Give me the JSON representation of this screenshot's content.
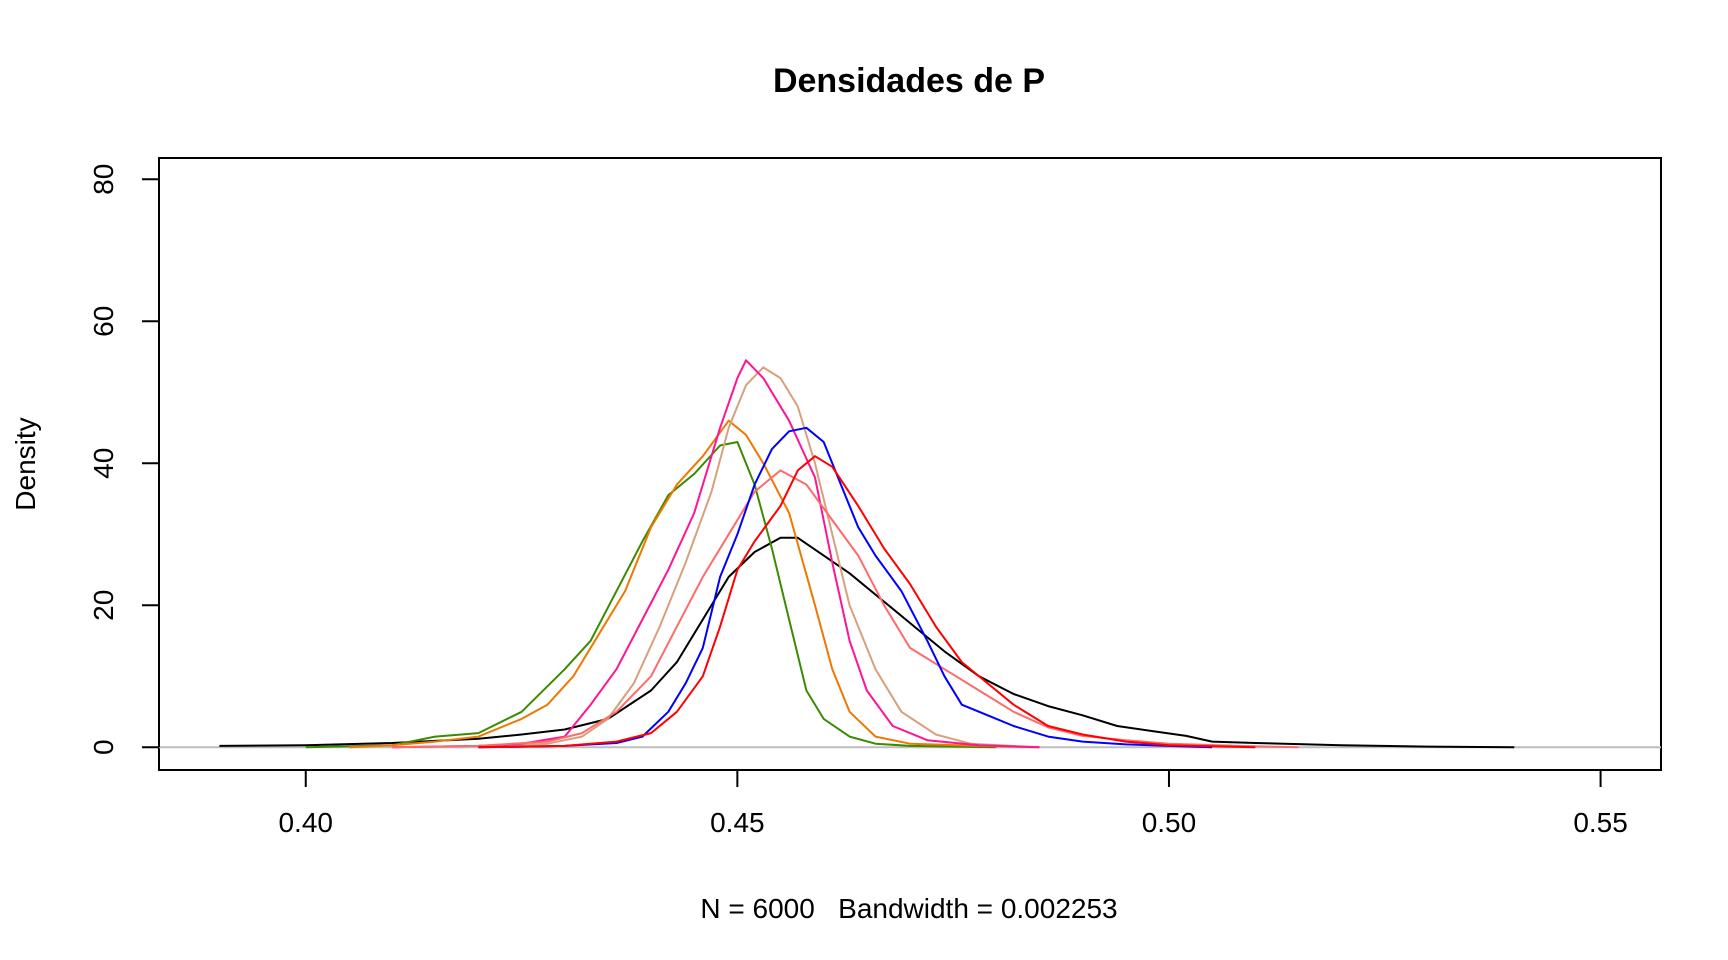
{
  "chart_data": {
    "type": "line",
    "title": "Densidades de P",
    "xlabel": "N = 6000   Bandwidth = 0.002253",
    "ylabel": "Density",
    "xlim": [
      0.383,
      0.557
    ],
    "ylim": [
      -3.2,
      83
    ],
    "x_ticks": [
      0.4,
      0.45,
      0.5,
      0.55
    ],
    "x_tick_labels": [
      "0.40",
      "0.45",
      "0.50",
      "0.55"
    ],
    "y_ticks": [
      0,
      20,
      40,
      60,
      80
    ],
    "y_tick_labels": [
      "0",
      "20",
      "40",
      "60",
      "80"
    ],
    "baseline_color": "#bebebe",
    "series": [
      {
        "color": "#000000",
        "points": [
          [
            0.39,
            0.2
          ],
          [
            0.4,
            0.3
          ],
          [
            0.41,
            0.6
          ],
          [
            0.42,
            1.2
          ],
          [
            0.425,
            1.8
          ],
          [
            0.43,
            2.5
          ],
          [
            0.435,
            4.0
          ],
          [
            0.44,
            8.0
          ],
          [
            0.443,
            12.0
          ],
          [
            0.446,
            18.0
          ],
          [
            0.449,
            24.0
          ],
          [
            0.452,
            27.5
          ],
          [
            0.455,
            29.5
          ],
          [
            0.457,
            29.5
          ],
          [
            0.46,
            27.0
          ],
          [
            0.463,
            24.5
          ],
          [
            0.466,
            21.5
          ],
          [
            0.47,
            17.5
          ],
          [
            0.474,
            13.5
          ],
          [
            0.478,
            10.0
          ],
          [
            0.482,
            7.5
          ],
          [
            0.486,
            5.8
          ],
          [
            0.49,
            4.5
          ],
          [
            0.494,
            3.0
          ],
          [
            0.498,
            2.3
          ],
          [
            0.502,
            1.6
          ],
          [
            0.505,
            0.8
          ],
          [
            0.51,
            0.6
          ],
          [
            0.52,
            0.3
          ],
          [
            0.53,
            0.1
          ],
          [
            0.54,
            0.0
          ]
        ]
      },
      {
        "color": "#3b8b00",
        "points": [
          [
            0.4,
            0.0
          ],
          [
            0.41,
            0.3
          ],
          [
            0.415,
            1.5
          ],
          [
            0.42,
            2.0
          ],
          [
            0.425,
            5.0
          ],
          [
            0.43,
            11.0
          ],
          [
            0.433,
            15.0
          ],
          [
            0.436,
            22.0
          ],
          [
            0.439,
            29.0
          ],
          [
            0.442,
            35.5
          ],
          [
            0.445,
            38.5
          ],
          [
            0.448,
            42.5
          ],
          [
            0.45,
            43.0
          ],
          [
            0.452,
            37.0
          ],
          [
            0.454,
            28.0
          ],
          [
            0.456,
            18.0
          ],
          [
            0.458,
            8.0
          ],
          [
            0.46,
            4.0
          ],
          [
            0.463,
            1.5
          ],
          [
            0.466,
            0.5
          ],
          [
            0.47,
            0.2
          ],
          [
            0.48,
            0.0
          ]
        ]
      },
      {
        "color": "#f07800",
        "points": [
          [
            0.405,
            0.0
          ],
          [
            0.41,
            0.3
          ],
          [
            0.415,
            0.8
          ],
          [
            0.42,
            1.5
          ],
          [
            0.425,
            4.0
          ],
          [
            0.428,
            6.0
          ],
          [
            0.431,
            10.0
          ],
          [
            0.434,
            16.0
          ],
          [
            0.437,
            22.0
          ],
          [
            0.44,
            31.0
          ],
          [
            0.443,
            37.0
          ],
          [
            0.446,
            41.0
          ],
          [
            0.449,
            46.0
          ],
          [
            0.451,
            44.0
          ],
          [
            0.453,
            40.0
          ],
          [
            0.456,
            33.0
          ],
          [
            0.459,
            20.0
          ],
          [
            0.461,
            11.0
          ],
          [
            0.463,
            5.0
          ],
          [
            0.466,
            1.5
          ],
          [
            0.47,
            0.5
          ],
          [
            0.478,
            0.2
          ],
          [
            0.485,
            0.0
          ]
        ]
      },
      {
        "color": "#d8a07a",
        "points": [
          [
            0.42,
            0.0
          ],
          [
            0.428,
            0.5
          ],
          [
            0.432,
            1.5
          ],
          [
            0.435,
            4.0
          ],
          [
            0.438,
            9.0
          ],
          [
            0.441,
            17.0
          ],
          [
            0.444,
            26.0
          ],
          [
            0.447,
            36.0
          ],
          [
            0.449,
            45.0
          ],
          [
            0.451,
            51.0
          ],
          [
            0.453,
            53.5
          ],
          [
            0.455,
            52.0
          ],
          [
            0.457,
            48.0
          ],
          [
            0.459,
            40.0
          ],
          [
            0.461,
            30.0
          ],
          [
            0.463,
            20.0
          ],
          [
            0.466,
            11.0
          ],
          [
            0.469,
            5.0
          ],
          [
            0.473,
            1.8
          ],
          [
            0.477,
            0.5
          ],
          [
            0.485,
            0.0
          ]
        ]
      },
      {
        "color": "#ff1493",
        "points": [
          [
            0.41,
            0.0
          ],
          [
            0.42,
            0.2
          ],
          [
            0.425,
            0.5
          ],
          [
            0.43,
            1.5
          ],
          [
            0.433,
            6.0
          ],
          [
            0.436,
            11.0
          ],
          [
            0.439,
            18.0
          ],
          [
            0.442,
            25.0
          ],
          [
            0.445,
            33.0
          ],
          [
            0.448,
            45.0
          ],
          [
            0.45,
            52.0
          ],
          [
            0.451,
            54.5
          ],
          [
            0.453,
            52.0
          ],
          [
            0.456,
            46.0
          ],
          [
            0.459,
            38.0
          ],
          [
            0.461,
            26.0
          ],
          [
            0.463,
            15.0
          ],
          [
            0.465,
            8.0
          ],
          [
            0.468,
            3.0
          ],
          [
            0.472,
            1.0
          ],
          [
            0.478,
            0.3
          ],
          [
            0.485,
            0.0
          ]
        ]
      },
      {
        "color": "#ff6a6a",
        "points": [
          [
            0.41,
            0.0
          ],
          [
            0.42,
            0.2
          ],
          [
            0.428,
            0.8
          ],
          [
            0.432,
            2.0
          ],
          [
            0.436,
            5.0
          ],
          [
            0.44,
            10.0
          ],
          [
            0.443,
            17.0
          ],
          [
            0.446,
            24.0
          ],
          [
            0.449,
            30.0
          ],
          [
            0.452,
            36.0
          ],
          [
            0.455,
            39.0
          ],
          [
            0.458,
            37.0
          ],
          [
            0.461,
            32.0
          ],
          [
            0.464,
            27.0
          ],
          [
            0.467,
            20.0
          ],
          [
            0.47,
            14.0
          ],
          [
            0.474,
            11.0
          ],
          [
            0.478,
            8.0
          ],
          [
            0.482,
            5.0
          ],
          [
            0.486,
            2.8
          ],
          [
            0.49,
            1.6
          ],
          [
            0.495,
            1.0
          ],
          [
            0.5,
            0.5
          ],
          [
            0.508,
            0.2
          ],
          [
            0.515,
            0.0
          ]
        ]
      },
      {
        "color": "#0000ff",
        "points": [
          [
            0.42,
            0.0
          ],
          [
            0.43,
            0.2
          ],
          [
            0.436,
            0.6
          ],
          [
            0.439,
            1.5
          ],
          [
            0.442,
            5.0
          ],
          [
            0.444,
            9.0
          ],
          [
            0.446,
            14.0
          ],
          [
            0.448,
            24.0
          ],
          [
            0.45,
            30.0
          ],
          [
            0.452,
            37.0
          ],
          [
            0.454,
            42.0
          ],
          [
            0.456,
            44.5
          ],
          [
            0.458,
            45.0
          ],
          [
            0.46,
            43.0
          ],
          [
            0.462,
            37.0
          ],
          [
            0.464,
            31.0
          ],
          [
            0.466,
            27.0
          ],
          [
            0.469,
            22.0
          ],
          [
            0.472,
            15.0
          ],
          [
            0.474,
            10.0
          ],
          [
            0.476,
            6.0
          ],
          [
            0.479,
            4.5
          ],
          [
            0.482,
            3.0
          ],
          [
            0.486,
            1.5
          ],
          [
            0.49,
            0.8
          ],
          [
            0.495,
            0.4
          ],
          [
            0.5,
            0.2
          ],
          [
            0.505,
            0.0
          ]
        ]
      },
      {
        "color": "#ff0000",
        "points": [
          [
            0.42,
            0.0
          ],
          [
            0.43,
            0.2
          ],
          [
            0.436,
            0.8
          ],
          [
            0.44,
            2.0
          ],
          [
            0.443,
            5.0
          ],
          [
            0.446,
            10.0
          ],
          [
            0.448,
            17.0
          ],
          [
            0.45,
            25.0
          ],
          [
            0.452,
            29.0
          ],
          [
            0.455,
            34.0
          ],
          [
            0.457,
            39.0
          ],
          [
            0.459,
            41.0
          ],
          [
            0.461,
            39.5
          ],
          [
            0.464,
            34.0
          ],
          [
            0.467,
            28.0
          ],
          [
            0.47,
            23.0
          ],
          [
            0.473,
            17.0
          ],
          [
            0.476,
            12.0
          ],
          [
            0.479,
            9.0
          ],
          [
            0.482,
            6.0
          ],
          [
            0.486,
            3.0
          ],
          [
            0.49,
            1.8
          ],
          [
            0.495,
            0.8
          ],
          [
            0.5,
            0.3
          ],
          [
            0.51,
            0.0
          ]
        ]
      }
    ]
  }
}
